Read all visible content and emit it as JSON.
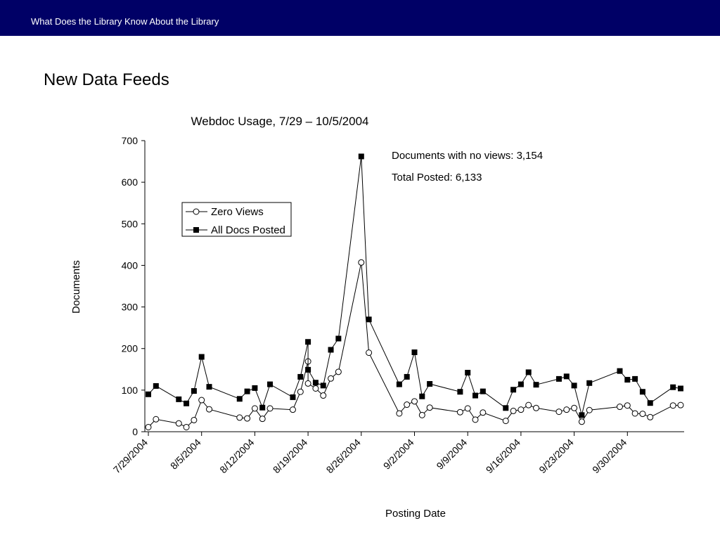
{
  "header": {
    "title": "What Does the Library Know About the Library",
    "color": "#000066"
  },
  "slide": {
    "heading": "New Data Feeds"
  },
  "chart_data": {
    "type": "line",
    "title": "Webdoc Usage, 7/29 – 10/5/2004",
    "xlabel": "Posting  Date",
    "ylabel": "Documents",
    "ylim": [
      0,
      700
    ],
    "yticks": [
      0,
      100,
      200,
      300,
      400,
      500,
      600,
      700
    ],
    "xlim": [
      "2004-07-29",
      "2004-10-07"
    ],
    "xticks": [
      "2004-07-29",
      "2004-08-05",
      "2004-08-12",
      "2004-08-19",
      "2004-08-26",
      "2004-09-02",
      "2004-09-09",
      "2004-09-16",
      "2004-09-23",
      "2004-09-30"
    ],
    "xtick_labels": [
      "7/29/2004",
      "8/5/2004",
      "8/12/2004",
      "8/19/2004",
      "8/26/2004",
      "9/2/2004",
      "9/9/2004",
      "9/16/2004",
      "9/23/2004",
      "9/30/2004"
    ],
    "legend": {
      "position": "upper-left",
      "entries": [
        "Zero Views",
        "All Docs Posted"
      ]
    },
    "annotations": [
      "Documents with no views: 3,154",
      "Total Posted: 6,133"
    ],
    "grid": false,
    "series": [
      {
        "name": "Zero Views",
        "marker": "open-circle",
        "x": [
          "2004-07-29",
          "2004-07-30",
          "2004-08-02",
          "2004-08-03",
          "2004-08-04",
          "2004-08-05",
          "2004-08-06",
          "2004-08-10",
          "2004-08-11",
          "2004-08-12",
          "2004-08-13",
          "2004-08-14",
          "2004-08-17",
          "2004-08-18",
          "2004-08-19",
          "2004-08-19",
          "2004-08-20",
          "2004-08-21",
          "2004-08-22",
          "2004-08-23",
          "2004-08-26",
          "2004-08-27",
          "2004-08-31",
          "2004-09-01",
          "2004-09-02",
          "2004-09-03",
          "2004-09-04",
          "2004-09-08",
          "2004-09-09",
          "2004-09-10",
          "2004-09-11",
          "2004-09-14",
          "2004-09-15",
          "2004-09-16",
          "2004-09-17",
          "2004-09-18",
          "2004-09-21",
          "2004-09-22",
          "2004-09-23",
          "2004-09-24",
          "2004-09-25",
          "2004-09-29",
          "2004-09-30",
          "2004-10-01",
          "2004-10-02",
          "2004-10-03",
          "2004-10-06",
          "2004-10-07"
        ],
        "values": [
          11,
          30,
          20,
          11,
          28,
          76,
          54,
          34,
          32,
          56,
          31,
          56,
          53,
          96,
          169,
          116,
          104,
          87,
          128,
          144,
          407,
          190,
          44,
          65,
          73,
          40,
          58,
          47,
          56,
          29,
          46,
          26,
          50,
          53,
          64,
          57,
          48,
          53,
          57,
          24,
          52,
          60,
          63,
          44,
          43,
          35,
          63,
          64
        ]
      },
      {
        "name": "All Docs Posted",
        "marker": "filled-square",
        "x": [
          "2004-07-29",
          "2004-07-30",
          "2004-08-02",
          "2004-08-03",
          "2004-08-04",
          "2004-08-05",
          "2004-08-06",
          "2004-08-10",
          "2004-08-11",
          "2004-08-12",
          "2004-08-13",
          "2004-08-14",
          "2004-08-17",
          "2004-08-18",
          "2004-08-19",
          "2004-08-19",
          "2004-08-20",
          "2004-08-21",
          "2004-08-22",
          "2004-08-23",
          "2004-08-26",
          "2004-08-27",
          "2004-08-31",
          "2004-09-01",
          "2004-09-02",
          "2004-09-03",
          "2004-09-04",
          "2004-09-08",
          "2004-09-09",
          "2004-09-10",
          "2004-09-11",
          "2004-09-14",
          "2004-09-15",
          "2004-09-16",
          "2004-09-17",
          "2004-09-18",
          "2004-09-21",
          "2004-09-22",
          "2004-09-23",
          "2004-09-24",
          "2004-09-25",
          "2004-09-29",
          "2004-09-30",
          "2004-10-01",
          "2004-10-02",
          "2004-10-03",
          "2004-10-06",
          "2004-10-07"
        ],
        "values": [
          90,
          110,
          78,
          68,
          98,
          180,
          108,
          79,
          97,
          105,
          58,
          114,
          83,
          132,
          216,
          149,
          118,
          111,
          197,
          224,
          662,
          270,
          114,
          132,
          191,
          85,
          115,
          96,
          142,
          87,
          97,
          57,
          101,
          114,
          143,
          113,
          127,
          133,
          111,
          40,
          117,
          146,
          125,
          127,
          96,
          69,
          107,
          104
        ]
      }
    ]
  }
}
